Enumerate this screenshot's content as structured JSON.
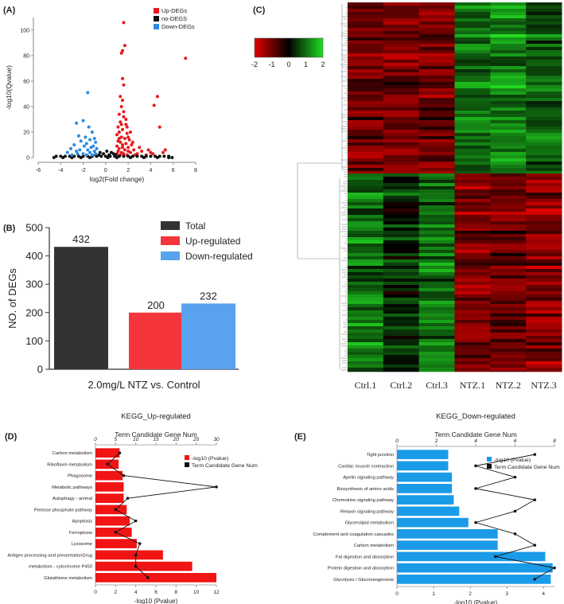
{
  "panel_labels": {
    "a": "(A)",
    "b": "(B)",
    "c": "(C)",
    "d": "(D)",
    "e": "(E)"
  },
  "colors": {
    "up": "#e8191c",
    "none": "#111111",
    "down": "#2a8be0",
    "total": "#333333",
    "up_bar": "#f4353c",
    "down_bar": "#58a2ee",
    "kegg_up": "#f01414",
    "kegg_down": "#1a9be8"
  },
  "chart_data": [
    {
      "id": "volcano",
      "type": "scatter",
      "xlabel": "log2(Fold change)",
      "ylabel": "-log10(Qvalue)",
      "xlim": [
        -6,
        8
      ],
      "ylim": [
        0,
        110
      ],
      "xticks": [
        "-6",
        "-4",
        "-2",
        "0",
        "2",
        "4",
        "6",
        "8"
      ],
      "yticks": [
        "0",
        "20",
        "40",
        "60",
        "80",
        "100"
      ],
      "legend": [
        "Up-DEGs",
        "no-DEGS",
        "Down-DEGs"
      ],
      "legend_position": "top-right",
      "series": [
        {
          "name": "Up-DEGs",
          "points": [
            [
              1.6,
              106
            ],
            [
              1.5,
              84
            ],
            [
              1.7,
              88
            ],
            [
              1.4,
              82
            ],
            [
              7.1,
              78
            ],
            [
              1.5,
              62
            ],
            [
              1.6,
              57
            ],
            [
              1.3,
              48
            ],
            [
              1.5,
              45
            ],
            [
              1.4,
              40
            ],
            [
              4.6,
              48
            ],
            [
              4.3,
              41
            ],
            [
              4.8,
              24
            ],
            [
              1.2,
              34
            ],
            [
              1.6,
              32
            ],
            [
              1.3,
              28
            ],
            [
              1.8,
              26
            ],
            [
              1.1,
              24
            ],
            [
              1.5,
              22
            ],
            [
              1.2,
              20
            ],
            [
              1.9,
              19
            ],
            [
              1.0,
              18
            ],
            [
              1.4,
              16
            ],
            [
              1.7,
              15
            ],
            [
              2.1,
              14
            ],
            [
              1.1,
              13
            ],
            [
              1.3,
              12
            ],
            [
              1.8,
              11
            ],
            [
              2.3,
              10
            ],
            [
              1.0,
              9
            ],
            [
              1.5,
              8
            ],
            [
              2.0,
              8
            ],
            [
              1.2,
              7
            ],
            [
              1.7,
              6
            ],
            [
              2.5,
              6
            ],
            [
              1.1,
              5
            ],
            [
              1.4,
              4
            ],
            [
              2.2,
              4
            ],
            [
              2.8,
              3
            ],
            [
              3.2,
              5
            ],
            [
              1.6,
              3
            ],
            [
              1.9,
              2
            ],
            [
              3.6,
              2
            ],
            [
              4.2,
              3
            ],
            [
              1.0,
              3
            ],
            [
              1.3,
              2
            ],
            [
              2.6,
              2
            ],
            [
              5.3,
              6
            ],
            [
              5.1,
              4
            ],
            [
              2.0,
              16
            ],
            [
              2.4,
              12
            ],
            [
              1.8,
              30
            ],
            [
              1.6,
              36
            ],
            [
              1.2,
              15
            ],
            [
              2.0,
              5
            ],
            [
              3.0,
              8
            ],
            [
              3.8,
              6
            ],
            [
              4.0,
              4
            ],
            [
              1.5,
              10
            ],
            [
              2.2,
              20
            ],
            [
              1.9,
              24
            ],
            [
              1.4,
              26
            ]
          ]
        },
        {
          "name": "no-DEGS",
          "points": [
            [
              -4.4,
              1
            ],
            [
              -4.0,
              1
            ],
            [
              -3.6,
              1
            ],
            [
              -3.2,
              1
            ],
            [
              -2.8,
              1
            ],
            [
              -2.4,
              1
            ],
            [
              -2.0,
              1
            ],
            [
              -1.6,
              1
            ],
            [
              -1.2,
              1
            ],
            [
              -0.8,
              1
            ],
            [
              -0.4,
              1
            ],
            [
              0,
              1
            ],
            [
              0.4,
              1
            ],
            [
              0.8,
              1
            ],
            [
              1.2,
              1
            ],
            [
              1.6,
              1
            ],
            [
              2.0,
              1
            ],
            [
              2.4,
              1
            ],
            [
              2.8,
              1
            ],
            [
              3.2,
              1
            ],
            [
              3.6,
              1
            ],
            [
              4.0,
              1
            ],
            [
              4.4,
              1
            ],
            [
              4.8,
              1
            ],
            [
              5.2,
              1
            ],
            [
              5.6,
              1
            ],
            [
              5.9,
              0
            ],
            [
              -0.6,
              2
            ],
            [
              0.3,
              2
            ],
            [
              0.7,
              3
            ],
            [
              -0.2,
              3
            ],
            [
              -0.9,
              2
            ],
            [
              0.5,
              4
            ],
            [
              0.1,
              5
            ],
            [
              -0.5,
              4
            ],
            [
              0.9,
              2
            ],
            [
              -4.6,
              0
            ],
            [
              -3.8,
              0
            ],
            [
              -3.0,
              0
            ],
            [
              -2.2,
              0
            ],
            [
              -1.4,
              0
            ],
            [
              0.2,
              0
            ],
            [
              1.0,
              0
            ],
            [
              2.2,
              0
            ],
            [
              3.4,
              0
            ],
            [
              4.6,
              0
            ],
            [
              5.6,
              0
            ]
          ]
        },
        {
          "name": "Down-DEGs",
          "points": [
            [
              -1.6,
              51
            ],
            [
              -2.0,
              29
            ],
            [
              -2.6,
              27
            ],
            [
              -1.5,
              24
            ],
            [
              -1.2,
              20
            ],
            [
              -2.4,
              17
            ],
            [
              -1.8,
              16
            ],
            [
              -1.0,
              15
            ],
            [
              -1.4,
              14
            ],
            [
              -2.2,
              13
            ],
            [
              -0.9,
              12
            ],
            [
              -1.7,
              11
            ],
            [
              -2.8,
              10
            ],
            [
              -1.1,
              9
            ],
            [
              -1.9,
              9
            ],
            [
              -1.3,
              8
            ],
            [
              -3.1,
              7
            ],
            [
              -0.8,
              7
            ],
            [
              -2.3,
              6
            ],
            [
              -1.6,
              6
            ],
            [
              -1.0,
              5
            ],
            [
              -2.6,
              5
            ],
            [
              -3.4,
              4
            ],
            [
              -1.4,
              4
            ],
            [
              -2.0,
              3
            ],
            [
              -0.9,
              3
            ],
            [
              -1.7,
              2
            ],
            [
              -3.0,
              2
            ],
            [
              -1.2,
              2
            ],
            [
              -2.5,
              3
            ]
          ]
        }
      ]
    },
    {
      "id": "deg-counts",
      "type": "bar",
      "ylabel": "NO. of DEGs",
      "xlabel": "2.0mg/L NTZ vs. Control",
      "ylim": [
        0,
        500
      ],
      "yticks": [
        "0",
        "100",
        "200",
        "300",
        "400",
        "500"
      ],
      "categories": [
        "Total",
        "Up-regulated",
        "Down-regulated"
      ],
      "values": [
        432,
        200,
        232
      ],
      "value_labels": [
        "432",
        "200",
        "232"
      ],
      "legend_position": "top-right"
    },
    {
      "id": "heatmap",
      "type": "heatmap",
      "columns": [
        "Ctrl.1",
        "Ctrl.2",
        "Ctrl.3",
        "NTZ.1",
        "NTZ.2",
        "NTZ.3"
      ],
      "color_scale": {
        "min": -2,
        "max": 2,
        "low": "#e00000",
        "mid": "#000000",
        "high": "#22dd22"
      },
      "scale_ticks": [
        "-2",
        "-1",
        "0",
        "1",
        "2"
      ],
      "row_clusters": [
        {
          "rows_share": 0.43,
          "pattern": [
            -0.9,
            -1.0,
            -0.9,
            1.0,
            1.3,
            0.9
          ]
        },
        {
          "rows_share": 0.57,
          "pattern": [
            1.0,
            0.4,
            1.0,
            -1.0,
            -0.9,
            -1.2
          ]
        }
      ]
    },
    {
      "id": "kegg-up",
      "type": "bar",
      "orientation": "horizontal",
      "title": "KEGG_Up-regulated",
      "top_axis_label": "Term Candidate Gene Num",
      "xlabel": "-log10  (Pvalue)",
      "xlim": [
        0,
        12
      ],
      "xticks": [
        "0",
        "2",
        "4",
        "6",
        "8",
        "10",
        "12"
      ],
      "top_lim": [
        0,
        30
      ],
      "top_ticks": [
        "0",
        "5",
        "10",
        "15",
        "20",
        "25",
        "30"
      ],
      "legend": [
        "-log10  (Pvalue)",
        "Term Candidate Gene Num"
      ],
      "legend_position": "top-right",
      "categories": [
        "Carbon metabolism",
        "Riboflavin metabolism",
        "Phagosome",
        "Metabolic pathways",
        "Autophagy - animal",
        "Pentose phosphate pathway",
        "Apoptosis",
        "Ferroptosis",
        "Lysosome",
        "Antigen processing and presentationDrug",
        "metabolism - cytochrome P450",
        "Glutathione metabolism"
      ],
      "values": [
        2.4,
        2.3,
        2.7,
        2.8,
        2.8,
        3.1,
        3.4,
        3.6,
        4.1,
        6.7,
        9.6,
        12.0
      ],
      "gene_num": [
        6,
        3,
        7,
        30,
        8,
        5,
        10,
        5,
        11,
        10,
        10,
        13
      ]
    },
    {
      "id": "kegg-down",
      "type": "bar",
      "orientation": "horizontal",
      "title": "KEGG_Down-regulated",
      "top_axis_label": "Term Candidate Gene Num",
      "xlabel": "-log10  (Pvalue)",
      "xlim": [
        0,
        4.3
      ],
      "xticks": [
        "0",
        "1",
        "2",
        "3",
        "4"
      ],
      "top_lim": [
        0,
        8
      ],
      "top_ticks": [
        "0",
        "2",
        "4",
        "6",
        "8"
      ],
      "legend": [
        "-log10  (Pvalue)",
        "Term Candidate Gene Num"
      ],
      "legend_position": "top-right",
      "categories": [
        "Tight junction",
        "Cardiac muscle contraction",
        "Apelin signaling pathway",
        "Biosynthesis of amino acids",
        "Chemokine signaling pathway",
        "Relaxin signaling pathway",
        "Glycerolipid metabolism",
        "Complement and coagulation cascades",
        "Carbon metabolism",
        "Fat digestion and absorption",
        "Protein digestion and absorption",
        "Glycolysis / Gluconeogenesis"
      ],
      "values": [
        1.4,
        1.4,
        1.5,
        1.5,
        1.55,
        1.7,
        1.95,
        2.75,
        2.75,
        4.05,
        4.25,
        4.2
      ],
      "gene_num": [
        7,
        4,
        6,
        4,
        7,
        6,
        4,
        6,
        7,
        5,
        8,
        7
      ]
    }
  ]
}
